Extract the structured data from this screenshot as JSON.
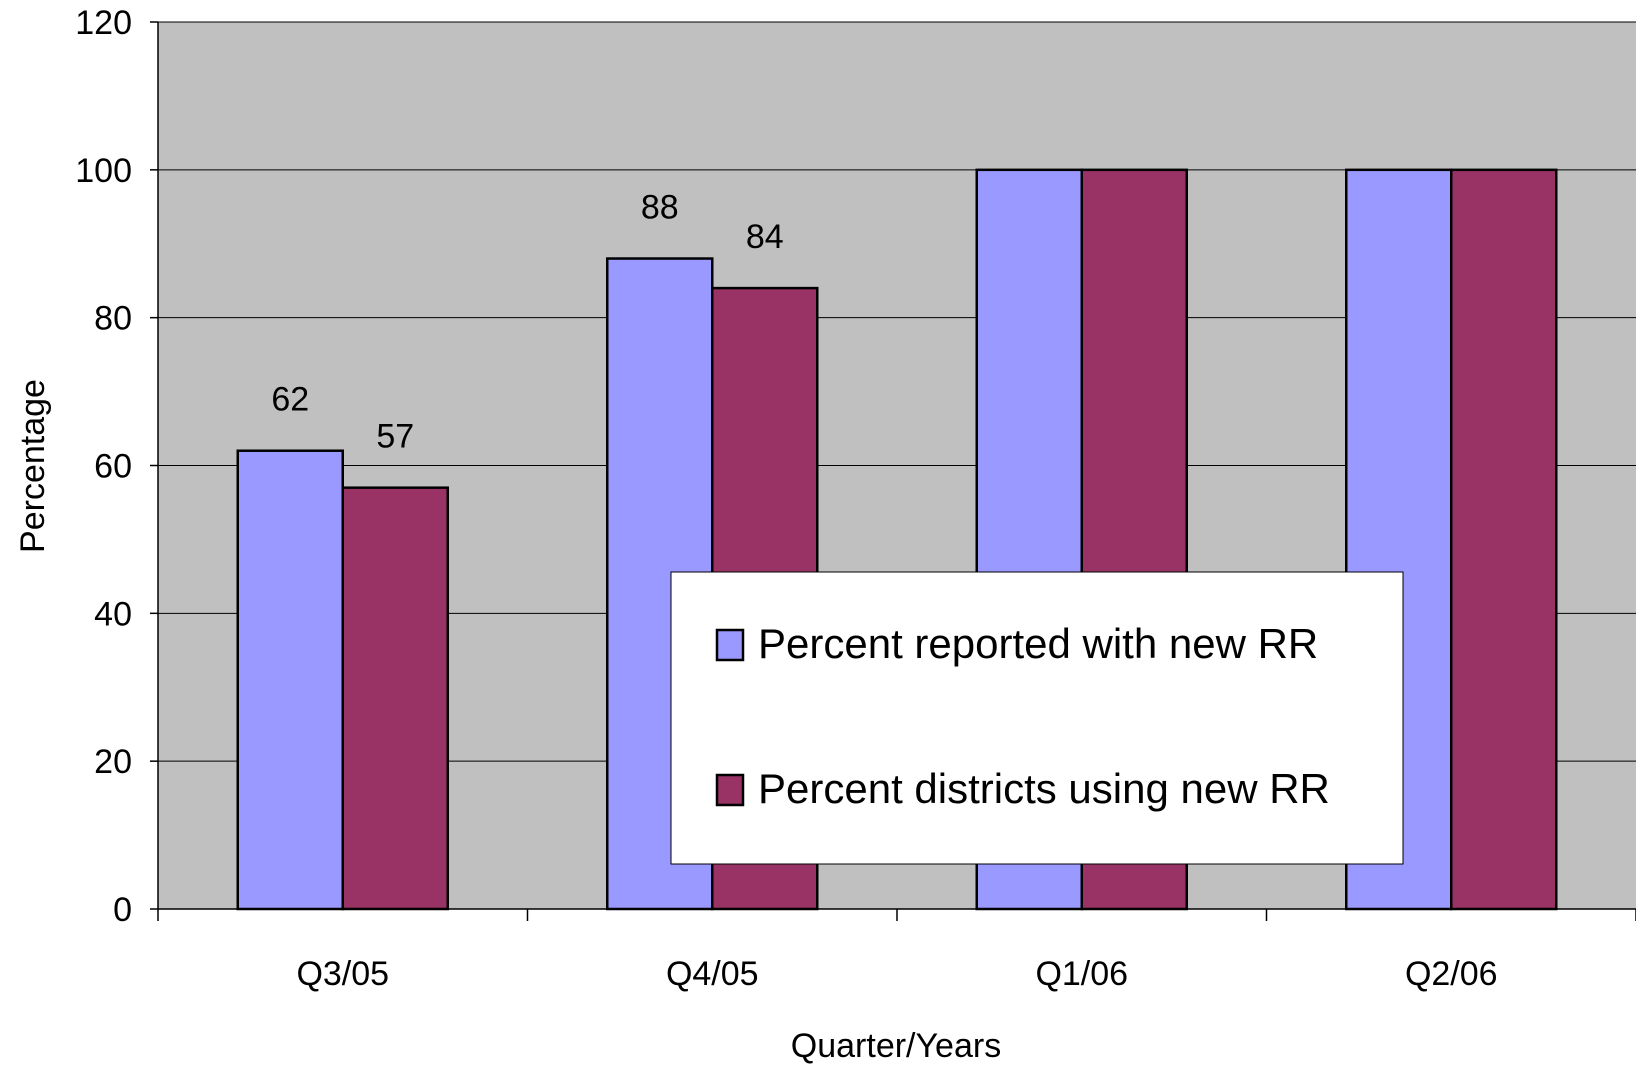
{
  "chart_data": {
    "type": "bar",
    "title": "",
    "xlabel": "Quarter/Years",
    "ylabel": "Percentage",
    "categories": [
      "Q3/05",
      "Q4/05",
      "Q1/06",
      "Q2/06"
    ],
    "ylim": [
      0,
      120
    ],
    "yticks": [
      "0",
      "20",
      "40",
      "60",
      "80",
      "100",
      "120"
    ],
    "grid": true,
    "plot_background": "#c0c0c0",
    "legend_position": "center-right",
    "series": [
      {
        "name": "Percent reported with new RR",
        "values": [
          62,
          88,
          100,
          100
        ],
        "data_labels": [
          "62",
          "88",
          "",
          ""
        ],
        "color": "#9999ff"
      },
      {
        "name": "Percent districts using new RR",
        "values": [
          57,
          84,
          100,
          100
        ],
        "data_labels": [
          "57",
          "84",
          "",
          ""
        ],
        "color": "#993366"
      }
    ]
  }
}
